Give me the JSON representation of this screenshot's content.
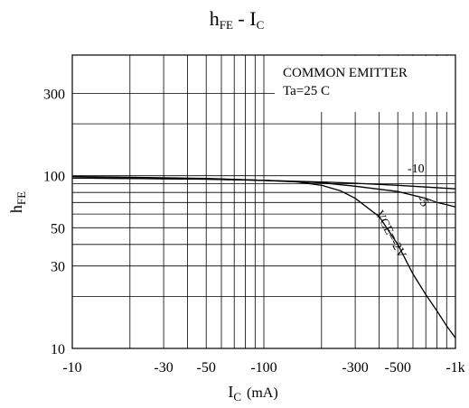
{
  "chart_data": {
    "type": "line",
    "title": {
      "main_1": "h",
      "sub_1": "FE",
      "sep": " - I",
      "sub_2": "C"
    },
    "xlabel": {
      "main": "I",
      "sub": "C",
      "unit": "(mA)"
    },
    "ylabel": {
      "main": "h",
      "sub": "FE"
    },
    "x_scale": "log",
    "y_scale": "log",
    "xlim": [
      10,
      1000
    ],
    "ylim": [
      10,
      500
    ],
    "x_ticks": [
      {
        "value": 10,
        "label": "-10"
      },
      {
        "value": 30,
        "label": "-30"
      },
      {
        "value": 50,
        "label": "-50"
      },
      {
        "value": 100,
        "label": "-100"
      },
      {
        "value": 300,
        "label": "-300"
      },
      {
        "value": 500,
        "label": "-500"
      },
      {
        "value": 1000,
        "label": "-1k"
      }
    ],
    "y_ticks": [
      {
        "value": 10,
        "label": "10"
      },
      {
        "value": 30,
        "label": "30"
      },
      {
        "value": 50,
        "label": "50"
      },
      {
        "value": 100,
        "label": "100"
      },
      {
        "value": 300,
        "label": "300"
      }
    ],
    "y_gridlines": [
      10,
      20,
      30,
      40,
      50,
      60,
      70,
      80,
      90,
      100,
      200,
      300
    ],
    "grid": true,
    "annotation": {
      "line1": "COMMON EMITTER",
      "line2": "Ta=25  C"
    },
    "series": [
      {
        "name": "-10",
        "x": [
          10,
          20,
          50,
          100,
          200,
          300,
          500,
          700,
          1000
        ],
        "y": [
          97,
          96.5,
          95.5,
          94,
          92,
          90.5,
          88,
          86,
          84
        ]
      },
      {
        "name": "-5",
        "x": [
          10,
          20,
          50,
          100,
          200,
          300,
          500,
          700,
          800,
          900,
          1000
        ],
        "y": [
          97,
          96.5,
          95.5,
          94,
          91,
          87,
          81,
          74,
          70,
          68,
          66
        ]
      },
      {
        "name": "VCE=-2V",
        "x": [
          10,
          20,
          50,
          100,
          150,
          200,
          250,
          300,
          400,
          500,
          600,
          700,
          800,
          900,
          1000
        ],
        "y": [
          99,
          98,
          96.5,
          94,
          92,
          88,
          82,
          74,
          58,
          40,
          27,
          20.5,
          16.5,
          13.5,
          11.5
        ]
      }
    ]
  }
}
